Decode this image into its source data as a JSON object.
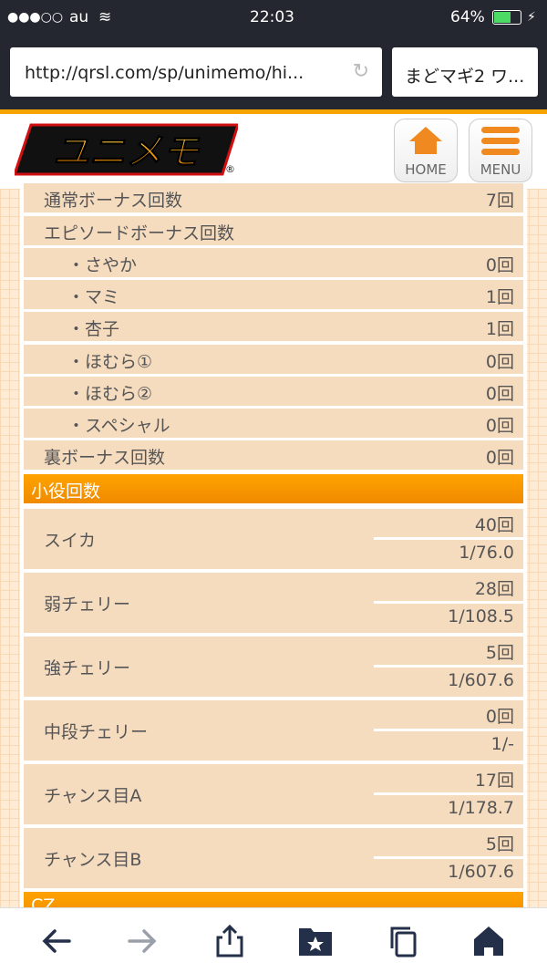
{
  "status_bar": {
    "signal": "●●●○○",
    "carrier": "au",
    "time": "22:03",
    "battery": "64%"
  },
  "browser": {
    "url": "http://qrsl.com/sp/unimemo/hi...",
    "tab_title": "まどマギ2 ワ..."
  },
  "header": {
    "logo_text": "ユニメモ",
    "home_label": "HOME",
    "menu_label": "MENU"
  },
  "bonus_rows": [
    {
      "label": "通常ボーナス回数",
      "value": "7回",
      "indent": false
    },
    {
      "label": "エピソードボーナス回数",
      "value": "",
      "indent": false
    },
    {
      "label": "・さやか",
      "value": "0回",
      "indent": true
    },
    {
      "label": "・マミ",
      "value": "1回",
      "indent": true
    },
    {
      "label": "・杏子",
      "value": "1回",
      "indent": true
    },
    {
      "label": "・ほむら①",
      "value": "0回",
      "indent": true
    },
    {
      "label": "・ほむら②",
      "value": "0回",
      "indent": true
    },
    {
      "label": "・スペシャル",
      "value": "0回",
      "indent": true
    },
    {
      "label": "裏ボーナス回数",
      "value": "0回",
      "indent": false
    }
  ],
  "koyaku_section": {
    "title": "小役回数",
    "rows": [
      {
        "label": "スイカ",
        "count": "40回",
        "prob": "1/76.0"
      },
      {
        "label": "弱チェリー",
        "count": "28回",
        "prob": "1/108.5"
      },
      {
        "label": "強チェリー",
        "count": "5回",
        "prob": "1/607.6"
      },
      {
        "label": "中段チェリー",
        "count": "0回",
        "prob": "1/-"
      },
      {
        "label": "チャンス目A",
        "count": "17回",
        "prob": "1/178.7"
      },
      {
        "label": "チャンス目B",
        "count": "5回",
        "prob": "1/607.6"
      }
    ]
  },
  "cz_section": {
    "title": "CZ"
  },
  "colors": {
    "accent": "#f59a00",
    "row_bg": "#f6dcbf",
    "chrome": "#24272f"
  }
}
